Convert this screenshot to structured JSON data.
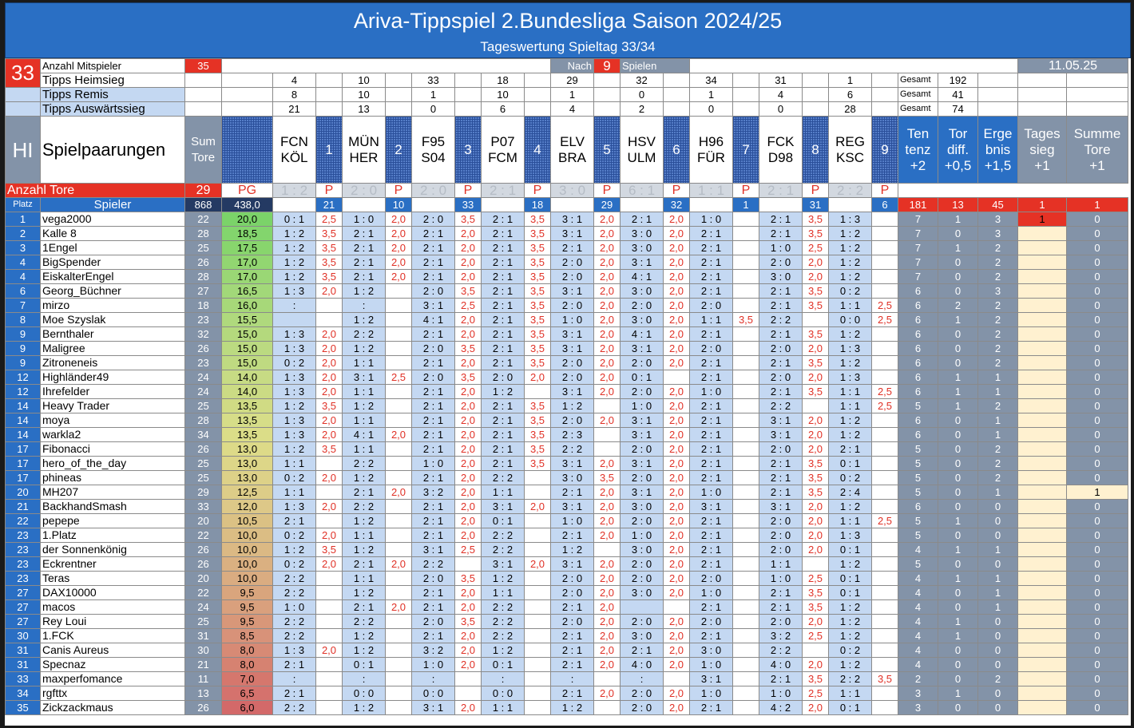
{
  "title": "Ariva-Tippspiel 2.Bundesliga Saison 2024/25",
  "subtitle": "Tageswertung Spieltag 33/34",
  "spieltag": "33",
  "mitspieler_label": "Anzahl Mitspieler",
  "mitspieler": "35",
  "nach_label": "Nach",
  "nach": "9",
  "spielen_label": "Spielen",
  "date": "11.05.25",
  "stat_rows": [
    {
      "label": "Tipps Heimsieg",
      "vals": [
        "4",
        "10",
        "33",
        "18",
        "29",
        "32",
        "34",
        "31",
        "1"
      ],
      "gesamt": "192"
    },
    {
      "label": "Tipps Remis",
      "vals": [
        "8",
        "10",
        "1",
        "10",
        "1",
        "0",
        "1",
        "4",
        "6"
      ],
      "gesamt": "41"
    },
    {
      "label": "Tipps Auswärtssieg",
      "vals": [
        "21",
        "13",
        "0",
        "6",
        "4",
        "2",
        "0",
        "0",
        "28"
      ],
      "gesamt": "74"
    }
  ],
  "gesamt_label": "Gesamt",
  "hl": "HI",
  "spielpaarungen": "Spielpaarungen",
  "sum_tore_label": [
    "Sum",
    "Tore"
  ],
  "matches": [
    {
      "h": "FCN",
      "a": "KÖL",
      "n": "1",
      "r": "1 : 2",
      "p": "21"
    },
    {
      "h": "MÜN",
      "a": "HER",
      "n": "2",
      "r": "2 : 0",
      "p": "10"
    },
    {
      "h": "F95",
      "a": "S04",
      "n": "3",
      "r": "2 : 0",
      "p": "33"
    },
    {
      "h": "P07",
      "a": "FCM",
      "n": "4",
      "r": "2 : 1",
      "p": "18"
    },
    {
      "h": "ELV",
      "a": "BRA",
      "n": "5",
      "r": "3 : 0",
      "p": "29"
    },
    {
      "h": "HSV",
      "a": "ULM",
      "n": "6",
      "r": "6 : 1",
      "p": "32"
    },
    {
      "h": "H96",
      "a": "FÜR",
      "n": "7",
      "r": "1 : 1",
      "p": "1"
    },
    {
      "h": "FCK",
      "a": "D98",
      "n": "8",
      "r": "2 : 1",
      "p": "31"
    },
    {
      "h": "REG",
      "a": "KSC",
      "n": "9",
      "r": "2 : 2",
      "p": "6"
    }
  ],
  "bonus_heads": [
    [
      "Ten",
      "tenz",
      "+2"
    ],
    [
      "Tor",
      "diff.",
      "+0,5"
    ],
    [
      "Erge",
      "bnis",
      "+1,5"
    ],
    [
      "Tages",
      "sieg",
      "+1"
    ],
    [
      "Summe",
      "Tore",
      "+1"
    ]
  ],
  "anzahl_tore_label": "Anzahl Tore",
  "anzahl_tore": "29",
  "pg_label": "PG",
  "p_label": "P",
  "platz_label": "Platz",
  "spieler_label": "Spieler",
  "total_tore": "868",
  "total_pts": "438,0",
  "bonus_totals": [
    "181",
    "13",
    "45",
    "1",
    "1"
  ],
  "players": [
    {
      "pl": "1",
      "n": "vega2000",
      "t": "22",
      "pts": "20,0",
      "c": [
        "0 : 1",
        "2,5",
        "1 : 0",
        "2,0",
        "2 : 0",
        "3,5",
        "2 : 1",
        "3,5",
        "3 : 1",
        "2,0",
        "2 : 1",
        "2,0",
        "1 : 0",
        "",
        "2 : 1",
        "3,5",
        "1 : 3",
        ""
      ],
      "b": [
        "7",
        "1",
        "3",
        "1",
        "0"
      ]
    },
    {
      "pl": "2",
      "n": "Kalle 8",
      "t": "28",
      "pts": "18,5",
      "c": [
        "1 : 2",
        "3,5",
        "2 : 1",
        "2,0",
        "2 : 1",
        "2,0",
        "2 : 1",
        "3,5",
        "3 : 1",
        "2,0",
        "3 : 0",
        "2,0",
        "2 : 1",
        "",
        "2 : 1",
        "3,5",
        "1 : 2",
        ""
      ],
      "b": [
        "7",
        "0",
        "3",
        "",
        "0"
      ]
    },
    {
      "pl": "3",
      "n": "1Engel",
      "t": "25",
      "pts": "17,5",
      "c": [
        "1 : 2",
        "3,5",
        "2 : 1",
        "2,0",
        "2 : 1",
        "2,0",
        "2 : 1",
        "3,5",
        "2 : 1",
        "2,0",
        "3 : 0",
        "2,0",
        "2 : 1",
        "",
        "1 : 0",
        "2,5",
        "1 : 2",
        ""
      ],
      "b": [
        "7",
        "1",
        "2",
        "",
        "0"
      ]
    },
    {
      "pl": "4",
      "n": "BigSpender",
      "t": "26",
      "pts": "17,0",
      "c": [
        "1 : 2",
        "3,5",
        "2 : 1",
        "2,0",
        "2 : 1",
        "2,0",
        "2 : 1",
        "3,5",
        "2 : 0",
        "2,0",
        "3 : 1",
        "2,0",
        "2 : 1",
        "",
        "2 : 0",
        "2,0",
        "1 : 2",
        ""
      ],
      "b": [
        "7",
        "0",
        "2",
        "",
        "0"
      ]
    },
    {
      "pl": "4",
      "n": "EiskalterEngel",
      "t": "28",
      "pts": "17,0",
      "c": [
        "1 : 2",
        "3,5",
        "2 : 1",
        "2,0",
        "2 : 1",
        "2,0",
        "2 : 1",
        "3,5",
        "2 : 0",
        "2,0",
        "4 : 1",
        "2,0",
        "2 : 1",
        "",
        "3 : 0",
        "2,0",
        "1 : 2",
        ""
      ],
      "b": [
        "7",
        "0",
        "2",
        "",
        "0"
      ]
    },
    {
      "pl": "6",
      "n": "Georg_Büchner",
      "t": "27",
      "pts": "16,5",
      "c": [
        "1 : 3",
        "2,0",
        "1 : 2",
        "",
        "2 : 0",
        "3,5",
        "2 : 1",
        "3,5",
        "3 : 1",
        "2,0",
        "3 : 0",
        "2,0",
        "2 : 1",
        "",
        "2 : 1",
        "3,5",
        "0 : 2",
        ""
      ],
      "b": [
        "6",
        "0",
        "3",
        "",
        "0"
      ]
    },
    {
      "pl": "7",
      "n": "mirzo",
      "t": "18",
      "pts": "16,0",
      "c": [
        ":",
        "",
        ":",
        "",
        "3 : 1",
        "2,5",
        "2 : 1",
        "3,5",
        "2 : 0",
        "2,0",
        "2 : 0",
        "2,0",
        "2 : 0",
        "",
        "2 : 1",
        "3,5",
        "1 : 1",
        "2,5"
      ],
      "b": [
        "6",
        "2",
        "2",
        "",
        "0"
      ]
    },
    {
      "pl": "8",
      "n": "Moe Szyslak",
      "t": "23",
      "pts": "15,5",
      "c": [
        "",
        "",
        "1 : 2",
        "",
        "4 : 1",
        "2,0",
        "2 : 1",
        "3,5",
        "1 : 0",
        "2,0",
        "3 : 0",
        "2,0",
        "1 : 1",
        "3,5",
        "2 : 2",
        "",
        "0 : 0",
        "2,5"
      ],
      "b": [
        "6",
        "1",
        "2",
        "",
        "0"
      ]
    },
    {
      "pl": "9",
      "n": "Bernthaler",
      "t": "32",
      "pts": "15,0",
      "c": [
        "1 : 3",
        "2,0",
        "2 : 2",
        "",
        "2 : 1",
        "2,0",
        "2 : 1",
        "3,5",
        "3 : 1",
        "2,0",
        "4 : 1",
        "2,0",
        "2 : 1",
        "",
        "2 : 1",
        "3,5",
        "1 : 2",
        ""
      ],
      "b": [
        "6",
        "0",
        "2",
        "",
        "0"
      ]
    },
    {
      "pl": "9",
      "n": "Maligree",
      "t": "26",
      "pts": "15,0",
      "c": [
        "1 : 3",
        "2,0",
        "1 : 2",
        "",
        "2 : 0",
        "3,5",
        "2 : 1",
        "3,5",
        "3 : 1",
        "2,0",
        "3 : 1",
        "2,0",
        "2 : 0",
        "",
        "2 : 0",
        "2,0",
        "1 : 3",
        ""
      ],
      "b": [
        "6",
        "0",
        "2",
        "",
        "0"
      ]
    },
    {
      "pl": "9",
      "n": "Zitroneneis",
      "t": "23",
      "pts": "15,0",
      "c": [
        "0 : 2",
        "2,0",
        "1 : 1",
        "",
        "2 : 1",
        "2,0",
        "2 : 1",
        "3,5",
        "2 : 0",
        "2,0",
        "2 : 0",
        "2,0",
        "2 : 1",
        "",
        "2 : 1",
        "3,5",
        "1 : 2",
        ""
      ],
      "b": [
        "6",
        "0",
        "2",
        "",
        "0"
      ]
    },
    {
      "pl": "12",
      "n": "Highländer49",
      "t": "24",
      "pts": "14,0",
      "c": [
        "1 : 3",
        "2,0",
        "3 : 1",
        "2,5",
        "2 : 0",
        "3,5",
        "2 : 0",
        "2,0",
        "2 : 0",
        "2,0",
        "0 : 1",
        "",
        "2 : 1",
        "",
        "2 : 0",
        "2,0",
        "1 : 3",
        ""
      ],
      "b": [
        "6",
        "1",
        "1",
        "",
        "0"
      ]
    },
    {
      "pl": "12",
      "n": "Ihrefelder",
      "t": "24",
      "pts": "14,0",
      "c": [
        "1 : 3",
        "2,0",
        "1 : 1",
        "",
        "2 : 1",
        "2,0",
        "1 : 2",
        "",
        "3 : 1",
        "2,0",
        "2 : 0",
        "2,0",
        "1 : 0",
        "",
        "2 : 1",
        "3,5",
        "1 : 1",
        "2,5"
      ],
      "b": [
        "6",
        "1",
        "1",
        "",
        "0"
      ]
    },
    {
      "pl": "14",
      "n": "Heavy Trader",
      "t": "25",
      "pts": "13,5",
      "c": [
        "1 : 2",
        "3,5",
        "1 : 2",
        "",
        "2 : 1",
        "2,0",
        "2 : 1",
        "3,5",
        "1 : 2",
        "",
        "1 : 0",
        "2,0",
        "2 : 1",
        "",
        "2 : 2",
        "",
        "1 : 1",
        "2,5"
      ],
      "b": [
        "5",
        "1",
        "2",
        "",
        "0"
      ]
    },
    {
      "pl": "14",
      "n": "moya",
      "t": "28",
      "pts": "13,5",
      "c": [
        "1 : 3",
        "2,0",
        "1 : 1",
        "",
        "2 : 1",
        "2,0",
        "2 : 1",
        "3,5",
        "2 : 0",
        "2,0",
        "3 : 1",
        "2,0",
        "2 : 1",
        "",
        "3 : 1",
        "2,0",
        "1 : 2",
        ""
      ],
      "b": [
        "6",
        "0",
        "1",
        "",
        "0"
      ]
    },
    {
      "pl": "14",
      "n": "warkla2",
      "t": "34",
      "pts": "13,5",
      "c": [
        "1 : 3",
        "2,0",
        "4 : 1",
        "2,0",
        "2 : 1",
        "2,0",
        "2 : 1",
        "3,5",
        "2 : 3",
        "",
        "3 : 1",
        "2,0",
        "2 : 1",
        "",
        "3 : 1",
        "2,0",
        "1 : 2",
        ""
      ],
      "b": [
        "6",
        "0",
        "1",
        "",
        "0"
      ]
    },
    {
      "pl": "17",
      "n": "Fibonacci",
      "t": "26",
      "pts": "13,0",
      "c": [
        "1 : 2",
        "3,5",
        "1 : 1",
        "",
        "2 : 1",
        "2,0",
        "2 : 1",
        "3,5",
        "2 : 2",
        "",
        "2 : 0",
        "2,0",
        "2 : 1",
        "",
        "2 : 0",
        "2,0",
        "2 : 1",
        ""
      ],
      "b": [
        "5",
        "0",
        "2",
        "",
        "0"
      ]
    },
    {
      "pl": "17",
      "n": "hero_of_the_day",
      "t": "25",
      "pts": "13,0",
      "c": [
        "1 : 1",
        "",
        "2 : 2",
        "",
        "1 : 0",
        "2,0",
        "2 : 1",
        "3,5",
        "3 : 1",
        "2,0",
        "3 : 1",
        "2,0",
        "2 : 1",
        "",
        "2 : 1",
        "3,5",
        "0 : 1",
        ""
      ],
      "b": [
        "5",
        "0",
        "2",
        "",
        "0"
      ]
    },
    {
      "pl": "17",
      "n": "phineas",
      "t": "25",
      "pts": "13,0",
      "c": [
        "0 : 2",
        "2,0",
        "1 : 2",
        "",
        "2 : 1",
        "2,0",
        "2 : 2",
        "",
        "3 : 0",
        "3,5",
        "2 : 0",
        "2,0",
        "2 : 1",
        "",
        "2 : 1",
        "3,5",
        "0 : 2",
        ""
      ],
      "b": [
        "5",
        "0",
        "2",
        "",
        "0"
      ]
    },
    {
      "pl": "20",
      "n": "MH207",
      "t": "29",
      "pts": "12,5",
      "c": [
        "1 : 1",
        "",
        "2 : 1",
        "2,0",
        "3 : 2",
        "2,0",
        "1 : 1",
        "",
        "2 : 1",
        "2,0",
        "3 : 1",
        "2,0",
        "1 : 0",
        "",
        "2 : 1",
        "3,5",
        "2 : 4",
        ""
      ],
      "b": [
        "5",
        "0",
        "1",
        "",
        "1"
      ]
    },
    {
      "pl": "21",
      "n": "BackhandSmash",
      "t": "33",
      "pts": "12,0",
      "c": [
        "1 : 3",
        "2,0",
        "2 : 2",
        "",
        "2 : 1",
        "2,0",
        "3 : 1",
        "2,0",
        "3 : 1",
        "2,0",
        "3 : 0",
        "2,0",
        "3 : 1",
        "",
        "3 : 1",
        "2,0",
        "1 : 2",
        ""
      ],
      "b": [
        "6",
        "0",
        "0",
        "",
        "0"
      ]
    },
    {
      "pl": "22",
      "n": "pepepe",
      "t": "20",
      "pts": "10,5",
      "c": [
        "2 : 1",
        "",
        "1 : 2",
        "",
        "2 : 1",
        "2,0",
        "0 : 1",
        "",
        "1 : 0",
        "2,0",
        "2 : 0",
        "2,0",
        "2 : 1",
        "",
        "2 : 0",
        "2,0",
        "1 : 1",
        "2,5"
      ],
      "b": [
        "5",
        "1",
        "0",
        "",
        "0"
      ]
    },
    {
      "pl": "23",
      "n": "1.Platz",
      "t": "22",
      "pts": "10,0",
      "c": [
        "0 : 2",
        "2,0",
        "1 : 1",
        "",
        "2 : 1",
        "2,0",
        "2 : 2",
        "",
        "2 : 1",
        "2,0",
        "1 : 0",
        "2,0",
        "2 : 1",
        "",
        "2 : 0",
        "2,0",
        "1 : 3",
        ""
      ],
      "b": [
        "5",
        "0",
        "0",
        "",
        "0"
      ]
    },
    {
      "pl": "23",
      "n": "der Sonnenkönig",
      "t": "26",
      "pts": "10,0",
      "c": [
        "1 : 2",
        "3,5",
        "1 : 2",
        "",
        "3 : 1",
        "2,5",
        "2 : 2",
        "",
        "1 : 2",
        "",
        "3 : 0",
        "2,0",
        "2 : 1",
        "",
        "2 : 0",
        "2,0",
        "0 : 1",
        ""
      ],
      "b": [
        "4",
        "1",
        "1",
        "",
        "0"
      ]
    },
    {
      "pl": "23",
      "n": "Eckrentner",
      "t": "26",
      "pts": "10,0",
      "c": [
        "0 : 2",
        "2,0",
        "2 : 1",
        "2,0",
        "2 : 2",
        "",
        "3 : 1",
        "2,0",
        "3 : 1",
        "2,0",
        "2 : 0",
        "2,0",
        "2 : 1",
        "",
        "1 : 1",
        "",
        "1 : 2",
        ""
      ],
      "b": [
        "5",
        "0",
        "0",
        "",
        "0"
      ]
    },
    {
      "pl": "23",
      "n": "Teras",
      "t": "20",
      "pts": "10,0",
      "c": [
        "2 : 2",
        "",
        "1 : 1",
        "",
        "2 : 0",
        "3,5",
        "1 : 2",
        "",
        "2 : 0",
        "2,0",
        "2 : 0",
        "2,0",
        "2 : 0",
        "",
        "1 : 0",
        "2,5",
        "0 : 1",
        ""
      ],
      "b": [
        "4",
        "1",
        "1",
        "",
        "0"
      ]
    },
    {
      "pl": "27",
      "n": "DAX10000",
      "t": "22",
      "pts": "9,5",
      "c": [
        "2 : 2",
        "",
        "1 : 2",
        "",
        "2 : 1",
        "2,0",
        "1 : 1",
        "",
        "2 : 0",
        "2,0",
        "3 : 0",
        "2,0",
        "1 : 0",
        "",
        "2 : 1",
        "3,5",
        "0 : 1",
        ""
      ],
      "b": [
        "4",
        "0",
        "1",
        "",
        "0"
      ]
    },
    {
      "pl": "27",
      "n": "macos",
      "t": "24",
      "pts": "9,5",
      "c": [
        "1 : 0",
        "",
        "2 : 1",
        "2,0",
        "2 : 1",
        "2,0",
        "2 : 2",
        "",
        "2 : 1",
        "2,0",
        "",
        "",
        "2 : 1",
        "",
        "2 : 1",
        "3,5",
        "1 : 2",
        ""
      ],
      "b": [
        "4",
        "0",
        "1",
        "",
        "0"
      ]
    },
    {
      "pl": "27",
      "n": "Rey Loui",
      "t": "25",
      "pts": "9,5",
      "c": [
        "2 : 2",
        "",
        "2 : 2",
        "",
        "2 : 0",
        "3,5",
        "2 : 2",
        "",
        "2 : 0",
        "2,0",
        "2 : 0",
        "2,0",
        "2 : 0",
        "",
        "2 : 0",
        "2,0",
        "1 : 2",
        ""
      ],
      "b": [
        "4",
        "1",
        "0",
        "",
        "0"
      ]
    },
    {
      "pl": "30",
      "n": "1.FCK",
      "t": "31",
      "pts": "8,5",
      "c": [
        "2 : 2",
        "",
        "1 : 2",
        "",
        "2 : 1",
        "2,0",
        "2 : 2",
        "",
        "2 : 1",
        "2,0",
        "3 : 0",
        "2,0",
        "2 : 1",
        "",
        "3 : 2",
        "2,5",
        "1 : 2",
        ""
      ],
      "b": [
        "4",
        "1",
        "0",
        "",
        "0"
      ]
    },
    {
      "pl": "31",
      "n": "Canis Aureus",
      "t": "30",
      "pts": "8,0",
      "c": [
        "1 : 3",
        "2,0",
        "1 : 2",
        "",
        "3 : 2",
        "2,0",
        "1 : 2",
        "",
        "2 : 1",
        "2,0",
        "2 : 1",
        "2,0",
        "3 : 0",
        "",
        "2 : 2",
        "",
        "0 : 2",
        ""
      ],
      "b": [
        "4",
        "0",
        "0",
        "",
        "0"
      ]
    },
    {
      "pl": "31",
      "n": "Specnaz",
      "t": "21",
      "pts": "8,0",
      "c": [
        "2 : 1",
        "",
        "0 : 1",
        "",
        "1 : 0",
        "2,0",
        "0 : 1",
        "",
        "2 : 1",
        "2,0",
        "4 : 0",
        "2,0",
        "1 : 0",
        "",
        "4 : 0",
        "2,0",
        "1 : 2",
        ""
      ],
      "b": [
        "4",
        "0",
        "0",
        "",
        "0"
      ]
    },
    {
      "pl": "33",
      "n": "maxperfomance",
      "t": "11",
      "pts": "7,0",
      "c": [
        ":",
        "",
        ":",
        "",
        ":",
        "",
        ":",
        "",
        ":",
        "",
        ":",
        "",
        "3 : 1",
        "",
        "2 : 1",
        "3,5",
        "2 : 2",
        "3,5"
      ],
      "b": [
        "2",
        "0",
        "2",
        "",
        "0"
      ]
    },
    {
      "pl": "34",
      "n": "rgfttx",
      "t": "13",
      "pts": "6,5",
      "c": [
        "2 : 1",
        "",
        "0 : 0",
        "",
        "0 : 0",
        "",
        "0 : 0",
        "",
        "2 : 1",
        "2,0",
        "2 : 0",
        "2,0",
        "1 : 0",
        "",
        "1 : 0",
        "2,5",
        "1 : 1",
        ""
      ],
      "b": [
        "3",
        "1",
        "0",
        "",
        "0"
      ]
    },
    {
      "pl": "35",
      "n": "Zickzackmaus",
      "t": "26",
      "pts": "6,0",
      "c": [
        "2 : 2",
        "",
        "1 : 2",
        "",
        "3 : 1",
        "2,0",
        "1 : 1",
        "",
        "1 : 2",
        "",
        "2 : 0",
        "2,0",
        "2 : 1",
        "",
        "4 : 2",
        "2,0",
        "0 : 1",
        ""
      ],
      "b": [
        "3",
        "0",
        "0",
        "",
        "0"
      ]
    }
  ]
}
